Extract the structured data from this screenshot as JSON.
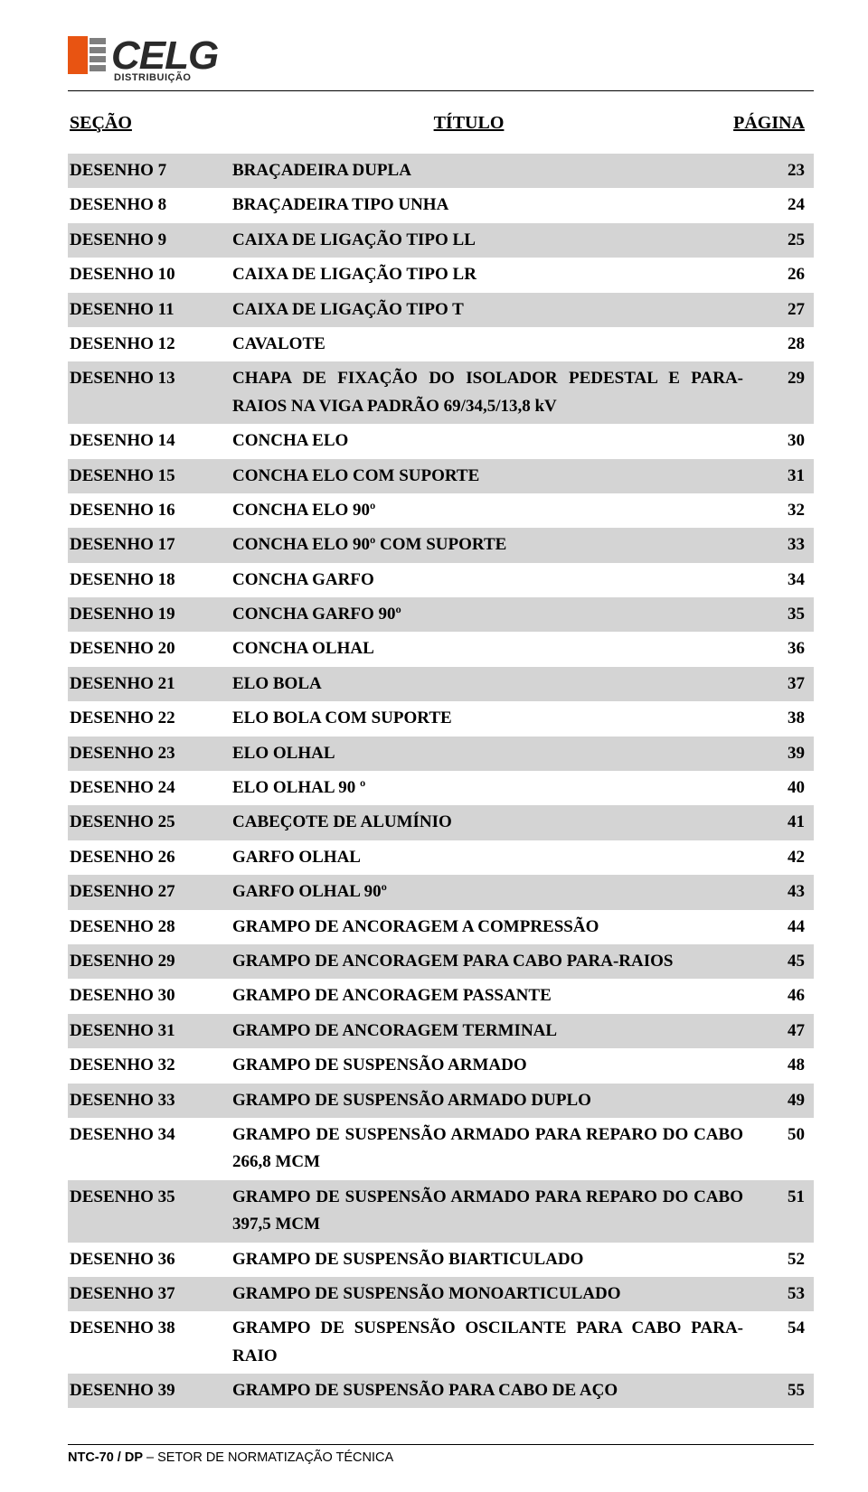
{
  "logo": {
    "brand": "CELG",
    "sub": "DISTRIBUIÇÃO",
    "orange": "#e85412",
    "gray": "#7f7f7f",
    "dark": "#2a2a2a"
  },
  "header": {
    "secao": "SEÇÃO",
    "titulo": "TÍTULO",
    "pagina": "PÁGINA"
  },
  "rows": [
    {
      "s": "DESENHO 7",
      "t": "BRAÇADEIRA DUPLA",
      "p": "23",
      "shade": true
    },
    {
      "s": "DESENHO 8",
      "t": "BRAÇADEIRA TIPO UNHA",
      "p": "24",
      "shade": false
    },
    {
      "s": "DESENHO 9",
      "t": "CAIXA DE LIGAÇÃO TIPO LL",
      "p": "25",
      "shade": true
    },
    {
      "s": "DESENHO 10",
      "t": "CAIXA DE LIGAÇÃO TIPO LR",
      "p": "26",
      "shade": false
    },
    {
      "s": "DESENHO 11",
      "t": "CAIXA DE LIGAÇÃO TIPO T",
      "p": "27",
      "shade": true
    },
    {
      "s": "DESENHO 12",
      "t": "CAVALOTE",
      "p": "28",
      "shade": false
    },
    {
      "s": "DESENHO 13",
      "t": "CHAPA DE FIXAÇÃO DO ISOLADOR PEDESTAL E PARA-RAIOS NA VIGA PADRÃO 69/34,5/13,8 kV",
      "p": "29",
      "shade": true
    },
    {
      "s": "DESENHO 14",
      "t": "CONCHA ELO",
      "p": "30",
      "shade": false
    },
    {
      "s": "DESENHO 15",
      "t": "CONCHA ELO COM SUPORTE",
      "p": "31",
      "shade": true
    },
    {
      "s": "DESENHO 16",
      "t": "CONCHA ELO 90º",
      "p": "32",
      "shade": false
    },
    {
      "s": "DESENHO 17",
      "t": "CONCHA ELO 90º COM SUPORTE",
      "p": "33",
      "shade": true
    },
    {
      "s": "DESENHO 18",
      "t": "CONCHA GARFO",
      "p": "34",
      "shade": false
    },
    {
      "s": "DESENHO 19",
      "t": "CONCHA GARFO 90º",
      "p": "35",
      "shade": true
    },
    {
      "s": "DESENHO 20",
      "t": "CONCHA OLHAL",
      "p": "36",
      "shade": false
    },
    {
      "s": "DESENHO 21",
      "t": "ELO BOLA",
      "p": "37",
      "shade": true
    },
    {
      "s": "DESENHO 22",
      "t": "ELO BOLA COM SUPORTE",
      "p": "38",
      "shade": false
    },
    {
      "s": "DESENHO 23",
      "t": "ELO OLHAL",
      "p": "39",
      "shade": true
    },
    {
      "s": "DESENHO 24",
      "t": "ELO OLHAL 90 º",
      "p": "40",
      "shade": false
    },
    {
      "s": "DESENHO 25",
      "t": "CABEÇOTE DE ALUMÍNIO",
      "p": "41",
      "shade": true
    },
    {
      "s": "DESENHO 26",
      "t": "GARFO OLHAL",
      "p": "42",
      "shade": false
    },
    {
      "s": "DESENHO 27",
      "t": "GARFO OLHAL 90º",
      "p": "43",
      "shade": true
    },
    {
      "s": "DESENHO 28",
      "t": "GRAMPO DE ANCORAGEM A COMPRESSÃO",
      "p": "44",
      "shade": false
    },
    {
      "s": "DESENHO 29",
      "t": "GRAMPO DE ANCORAGEM PARA CABO PARA-RAIOS",
      "p": "45",
      "shade": true
    },
    {
      "s": "DESENHO 30",
      "t": "GRAMPO DE ANCORAGEM PASSANTE",
      "p": "46",
      "shade": false
    },
    {
      "s": "DESENHO 31",
      "t": "GRAMPO DE ANCORAGEM TERMINAL",
      "p": "47",
      "shade": true
    },
    {
      "s": "DESENHO 32",
      "t": "GRAMPO DE SUSPENSÃO ARMADO",
      "p": "48",
      "shade": false
    },
    {
      "s": "DESENHO 33",
      "t": "GRAMPO DE SUSPENSÃO ARMADO DUPLO",
      "p": "49",
      "shade": true
    },
    {
      "s": "DESENHO 34",
      "t": "GRAMPO DE SUSPENSÃO ARMADO PARA REPARO DO CABO 266,8 MCM",
      "p": "50",
      "shade": false
    },
    {
      "s": "DESENHO 35",
      "t": "GRAMPO DE SUSPENSÃO ARMADO PARA REPARO DO CABO 397,5 MCM",
      "p": "51",
      "shade": true
    },
    {
      "s": "DESENHO 36",
      "t": "GRAMPO DE SUSPENSÃO BIARTICULADO",
      "p": "52",
      "shade": false
    },
    {
      "s": "DESENHO 37",
      "t": "GRAMPO DE SUSPENSÃO MONOARTICULADO",
      "p": "53",
      "shade": true
    },
    {
      "s": "DESENHO 38",
      "t": "GRAMPO DE SUSPENSÃO OSCILANTE PARA CABO PARA-RAIO",
      "p": "54",
      "shade": false
    },
    {
      "s": "DESENHO 39",
      "t": "GRAMPO DE SUSPENSÃO PARA CABO DE AÇO",
      "p": "55",
      "shade": true
    }
  ],
  "footer": {
    "code": "NTC-70 / DP",
    "rest": " – SETOR DE NORMATIZAÇÃO TÉCNICA"
  },
  "style": {
    "row_shade_bg": "#d4d4d4",
    "page_bg": "#ffffff",
    "text_color": "#000000",
    "base_fontsize_pt": 14,
    "header_fontsize_pt": 15
  }
}
